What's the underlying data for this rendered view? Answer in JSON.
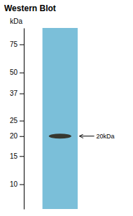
{
  "chart_data": {
    "type": "blot",
    "title": "Western Blot",
    "ylabel": "kDa",
    "log": "y",
    "ylim": [
      7,
      95
    ],
    "yticks": [
      10,
      15,
      20,
      25,
      37,
      50,
      75
    ],
    "values": [
      20
    ],
    "color": "#2a2010",
    "annotations": [
      {
        "text": "20kDa",
        "y": 20
      }
    ]
  }
}
